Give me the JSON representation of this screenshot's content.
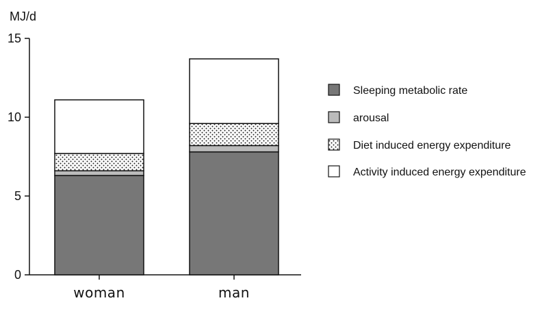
{
  "chart_data": {
    "type": "bar",
    "stacked": true,
    "title": "",
    "xlabel": "",
    "ylabel": "MJ/d",
    "ylim": [
      0,
      15
    ],
    "yticks": [
      "0",
      "5",
      "10",
      "15"
    ],
    "grid": false,
    "legend_position": "right",
    "categories": [
      "woman",
      "man"
    ],
    "series": [
      {
        "name": "Sleeping metabolic rate",
        "values": [
          6.3,
          7.8
        ],
        "color": "#777777",
        "pattern": "solid"
      },
      {
        "name": "arousal",
        "values": [
          0.3,
          0.4
        ],
        "color": "#bbbbbb",
        "pattern": "solid"
      },
      {
        "name": "Diet induced energy expenditure",
        "values": [
          1.1,
          1.4
        ],
        "color": "#ffffff",
        "pattern": "dots"
      },
      {
        "name": "Activity induced energy expenditure",
        "values": [
          3.4,
          4.1
        ],
        "color": "#ffffff",
        "pattern": "solid"
      }
    ]
  }
}
